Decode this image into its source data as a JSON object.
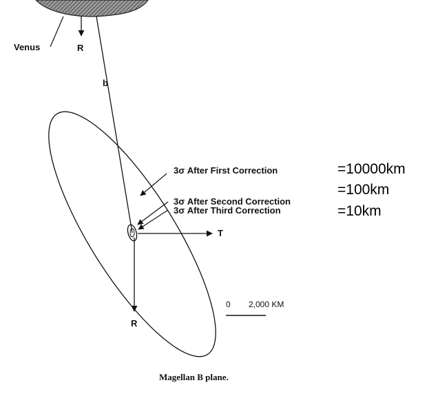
{
  "diagram": {
    "planet_label": "Venus",
    "radial_axis_label_top": "R",
    "radial_axis_label_bottom": "R",
    "impact_vector_label": "b",
    "transverse_axis_label": "T",
    "ellipses": [
      {
        "label": "3σ After First Correction",
        "annotation": "=10000km"
      },
      {
        "label": "3σ After Second Correction",
        "annotation": "=100km"
      },
      {
        "label": "3σ After Third Correction",
        "annotation": "=10km"
      }
    ],
    "scale": {
      "zero": "0",
      "value": "2,000 KM"
    },
    "caption": "Magellan B plane."
  },
  "colors": {
    "ink": "#111111",
    "venus_fill": "#8a8a8a",
    "background": "#ffffff"
  }
}
